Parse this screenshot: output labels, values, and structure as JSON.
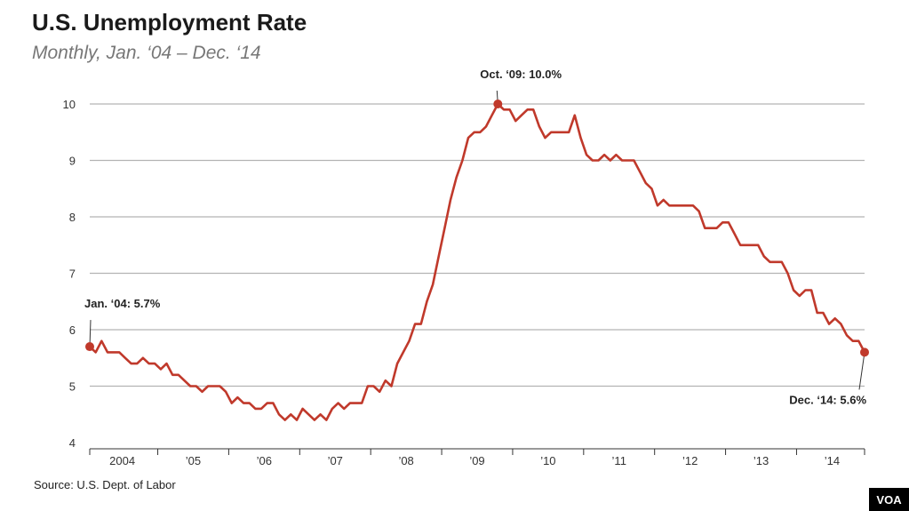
{
  "title": "U.S. Unemployment Rate",
  "subtitle": "Monthly, Jan. ‘04 – Dec. ‘14",
  "source": "Source: U.S. Dept. of Labor",
  "logo": "VOA",
  "colors": {
    "line": "#c0392b",
    "grid": "#b3b3b3",
    "axis": "#333333"
  },
  "chart_data": {
    "type": "line",
    "title": "U.S. Unemployment Rate",
    "subtitle": "Monthly, Jan. ‘04 – Dec. ‘14",
    "xlabel": "",
    "ylabel": "",
    "ylim": [
      4,
      10
    ],
    "y_ticks": [
      4,
      5,
      6,
      7,
      8,
      9,
      10
    ],
    "x_tick_labels": [
      "2004",
      "’05",
      "’06",
      "’07",
      "’08",
      "’09",
      "’10",
      "’11",
      "’12",
      "’13",
      "’14"
    ],
    "grid": "horizontal",
    "start": "Jan 2004",
    "end": "Dec 2014",
    "series": [
      {
        "values": [
          5.7,
          5.6,
          5.8,
          5.6,
          5.6,
          5.6,
          5.5,
          5.4,
          5.4,
          5.5,
          5.4,
          5.4,
          5.3,
          5.4,
          5.2,
          5.2,
          5.1,
          5.0,
          5.0,
          4.9,
          5.0,
          5.0,
          5.0,
          4.9,
          4.7,
          4.8,
          4.7,
          4.7,
          4.6,
          4.6,
          4.7,
          4.7,
          4.5,
          4.4,
          4.5,
          4.4,
          4.6,
          4.5,
          4.4,
          4.5,
          4.4,
          4.6,
          4.7,
          4.6,
          4.7,
          4.7,
          4.7,
          5.0,
          5.0,
          4.9,
          5.1,
          5.0,
          5.4,
          5.6,
          5.8,
          6.1,
          6.1,
          6.5,
          6.8,
          7.3,
          7.8,
          8.3,
          8.7,
          9.0,
          9.4,
          9.5,
          9.5,
          9.6,
          9.8,
          10.0,
          9.9,
          9.9,
          9.7,
          9.8,
          9.9,
          9.9,
          9.6,
          9.4,
          9.5,
          9.5,
          9.5,
          9.5,
          9.8,
          9.4,
          9.1,
          9.0,
          9.0,
          9.1,
          9.0,
          9.1,
          9.0,
          9.0,
          9.0,
          8.8,
          8.6,
          8.5,
          8.2,
          8.3,
          8.2,
          8.2,
          8.2,
          8.2,
          8.2,
          8.1,
          7.8,
          7.8,
          7.8,
          7.9,
          7.9,
          7.7,
          7.5,
          7.5,
          7.5,
          7.5,
          7.3,
          7.2,
          7.2,
          7.2,
          7.0,
          6.7,
          6.6,
          6.7,
          6.7,
          6.3,
          6.3,
          6.1,
          6.2,
          6.1,
          5.9,
          5.8,
          5.8,
          5.6
        ]
      }
    ],
    "annotations": [
      {
        "index": 0,
        "label": "Jan. ‘04: 5.7%"
      },
      {
        "index": 69,
        "label": "Oct. ‘09: 10.0%"
      },
      {
        "index": 131,
        "label": "Dec. ‘14: 5.6%"
      }
    ]
  }
}
